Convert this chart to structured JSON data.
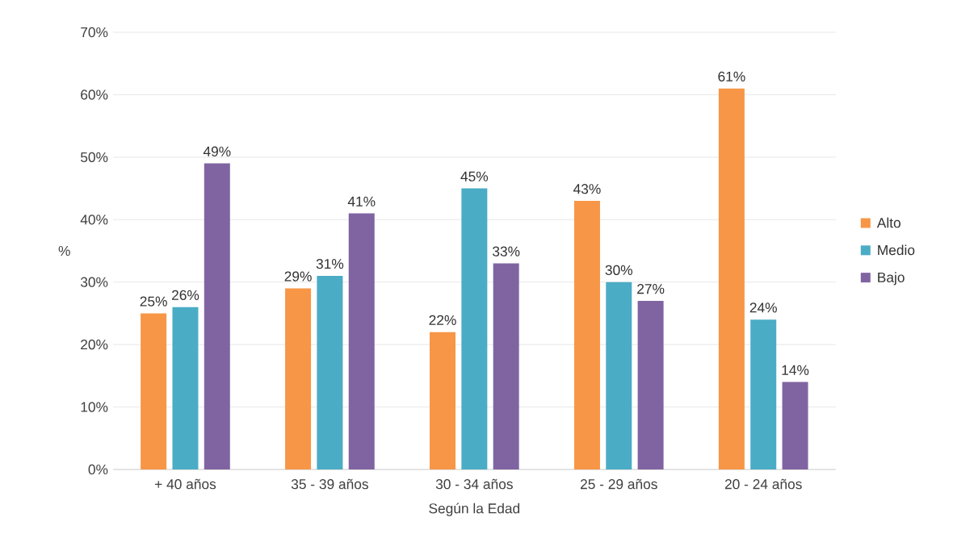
{
  "chart_data": {
    "type": "bar",
    "xlabel": "Según la Edad",
    "ylabel": "%",
    "categories": [
      "+ 40 años",
      "35 - 39 años",
      "30 - 34 años",
      "25 - 29 años",
      "20 - 24 años"
    ],
    "series": [
      {
        "name": "Alto",
        "color": "#f79646",
        "values": [
          25,
          29,
          22,
          43,
          61
        ],
        "value_labels": [
          "25%",
          "29%",
          "22%",
          "43%",
          "61%"
        ]
      },
      {
        "name": "Medio",
        "color": "#4bacc6",
        "values": [
          26,
          31,
          45,
          30,
          24
        ],
        "value_labels": [
          "26%",
          "31%",
          "45%",
          "30%",
          "24%"
        ]
      },
      {
        "name": "Bajo",
        "color": "#8064a2",
        "values": [
          49,
          41,
          33,
          27,
          14
        ],
        "value_labels": [
          "49%",
          "41%",
          "33%",
          "27%",
          "14%"
        ]
      }
    ],
    "ylim": [
      0,
      70
    ],
    "yticks": [
      {
        "value": 0,
        "label": "0%"
      },
      {
        "value": 10,
        "label": "10%"
      },
      {
        "value": 20,
        "label": "20%"
      },
      {
        "value": 30,
        "label": "30%"
      },
      {
        "value": 40,
        "label": "40%"
      },
      {
        "value": 50,
        "label": "50%"
      },
      {
        "value": 60,
        "label": "60%"
      },
      {
        "value": 70,
        "label": "70%"
      }
    ],
    "grid": "y",
    "legend": "right"
  }
}
